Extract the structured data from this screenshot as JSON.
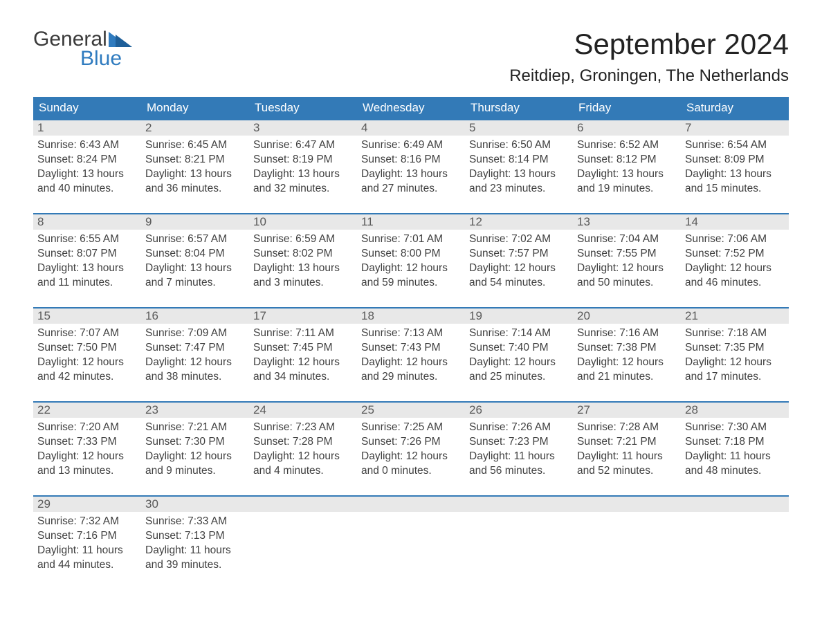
{
  "colors": {
    "header_bg": "#337ab7",
    "header_text": "#ffffff",
    "daynum_bg": "#e8e8e8",
    "daynum_text": "#5a5a5a",
    "body_text": "#3f3f3f",
    "week_border": "#337ab7",
    "logo_gray": "#3a3a3a",
    "logo_blue": "#2f7bbf",
    "page_bg": "#ffffff"
  },
  "typography": {
    "title_fontsize_pt": 32,
    "location_fontsize_pt": 18,
    "weekday_fontsize_pt": 13,
    "daynum_fontsize_pt": 13,
    "body_fontsize_pt": 12,
    "logo_fontsize_pt": 22,
    "font_family": "Arial"
  },
  "logo": {
    "top": "General",
    "bottom": "Blue"
  },
  "title": "September 2024",
  "location": "Reitdiep, Groningen, The Netherlands",
  "weekdays": [
    "Sunday",
    "Monday",
    "Tuesday",
    "Wednesday",
    "Thursday",
    "Friday",
    "Saturday"
  ],
  "labels": {
    "sunrise": "Sunrise:",
    "sunset": "Sunset:",
    "daylight_prefix": "Daylight:",
    "and": "and",
    "minutes_suffix": "minutes.",
    "hours_word": "hours"
  },
  "weeks": [
    [
      {
        "n": "1",
        "sunrise": "6:43 AM",
        "sunset": "8:24 PM",
        "dl_h": "13",
        "dl_m": "40"
      },
      {
        "n": "2",
        "sunrise": "6:45 AM",
        "sunset": "8:21 PM",
        "dl_h": "13",
        "dl_m": "36"
      },
      {
        "n": "3",
        "sunrise": "6:47 AM",
        "sunset": "8:19 PM",
        "dl_h": "13",
        "dl_m": "32"
      },
      {
        "n": "4",
        "sunrise": "6:49 AM",
        "sunset": "8:16 PM",
        "dl_h": "13",
        "dl_m": "27"
      },
      {
        "n": "5",
        "sunrise": "6:50 AM",
        "sunset": "8:14 PM",
        "dl_h": "13",
        "dl_m": "23"
      },
      {
        "n": "6",
        "sunrise": "6:52 AM",
        "sunset": "8:12 PM",
        "dl_h": "13",
        "dl_m": "19"
      },
      {
        "n": "7",
        "sunrise": "6:54 AM",
        "sunset": "8:09 PM",
        "dl_h": "13",
        "dl_m": "15"
      }
    ],
    [
      {
        "n": "8",
        "sunrise": "6:55 AM",
        "sunset": "8:07 PM",
        "dl_h": "13",
        "dl_m": "11"
      },
      {
        "n": "9",
        "sunrise": "6:57 AM",
        "sunset": "8:04 PM",
        "dl_h": "13",
        "dl_m": "7"
      },
      {
        "n": "10",
        "sunrise": "6:59 AM",
        "sunset": "8:02 PM",
        "dl_h": "13",
        "dl_m": "3"
      },
      {
        "n": "11",
        "sunrise": "7:01 AM",
        "sunset": "8:00 PM",
        "dl_h": "12",
        "dl_m": "59"
      },
      {
        "n": "12",
        "sunrise": "7:02 AM",
        "sunset": "7:57 PM",
        "dl_h": "12",
        "dl_m": "54"
      },
      {
        "n": "13",
        "sunrise": "7:04 AM",
        "sunset": "7:55 PM",
        "dl_h": "12",
        "dl_m": "50"
      },
      {
        "n": "14",
        "sunrise": "7:06 AM",
        "sunset": "7:52 PM",
        "dl_h": "12",
        "dl_m": "46"
      }
    ],
    [
      {
        "n": "15",
        "sunrise": "7:07 AM",
        "sunset": "7:50 PM",
        "dl_h": "12",
        "dl_m": "42"
      },
      {
        "n": "16",
        "sunrise": "7:09 AM",
        "sunset": "7:47 PM",
        "dl_h": "12",
        "dl_m": "38"
      },
      {
        "n": "17",
        "sunrise": "7:11 AM",
        "sunset": "7:45 PM",
        "dl_h": "12",
        "dl_m": "34"
      },
      {
        "n": "18",
        "sunrise": "7:13 AM",
        "sunset": "7:43 PM",
        "dl_h": "12",
        "dl_m": "29"
      },
      {
        "n": "19",
        "sunrise": "7:14 AM",
        "sunset": "7:40 PM",
        "dl_h": "12",
        "dl_m": "25"
      },
      {
        "n": "20",
        "sunrise": "7:16 AM",
        "sunset": "7:38 PM",
        "dl_h": "12",
        "dl_m": "21"
      },
      {
        "n": "21",
        "sunrise": "7:18 AM",
        "sunset": "7:35 PM",
        "dl_h": "12",
        "dl_m": "17"
      }
    ],
    [
      {
        "n": "22",
        "sunrise": "7:20 AM",
        "sunset": "7:33 PM",
        "dl_h": "12",
        "dl_m": "13"
      },
      {
        "n": "23",
        "sunrise": "7:21 AM",
        "sunset": "7:30 PM",
        "dl_h": "12",
        "dl_m": "9"
      },
      {
        "n": "24",
        "sunrise": "7:23 AM",
        "sunset": "7:28 PM",
        "dl_h": "12",
        "dl_m": "4"
      },
      {
        "n": "25",
        "sunrise": "7:25 AM",
        "sunset": "7:26 PM",
        "dl_h": "12",
        "dl_m": "0"
      },
      {
        "n": "26",
        "sunrise": "7:26 AM",
        "sunset": "7:23 PM",
        "dl_h": "11",
        "dl_m": "56"
      },
      {
        "n": "27",
        "sunrise": "7:28 AM",
        "sunset": "7:21 PM",
        "dl_h": "11",
        "dl_m": "52"
      },
      {
        "n": "28",
        "sunrise": "7:30 AM",
        "sunset": "7:18 PM",
        "dl_h": "11",
        "dl_m": "48"
      }
    ],
    [
      {
        "n": "29",
        "sunrise": "7:32 AM",
        "sunset": "7:16 PM",
        "dl_h": "11",
        "dl_m": "44"
      },
      {
        "n": "30",
        "sunrise": "7:33 AM",
        "sunset": "7:13 PM",
        "dl_h": "11",
        "dl_m": "39"
      },
      null,
      null,
      null,
      null,
      null
    ]
  ]
}
